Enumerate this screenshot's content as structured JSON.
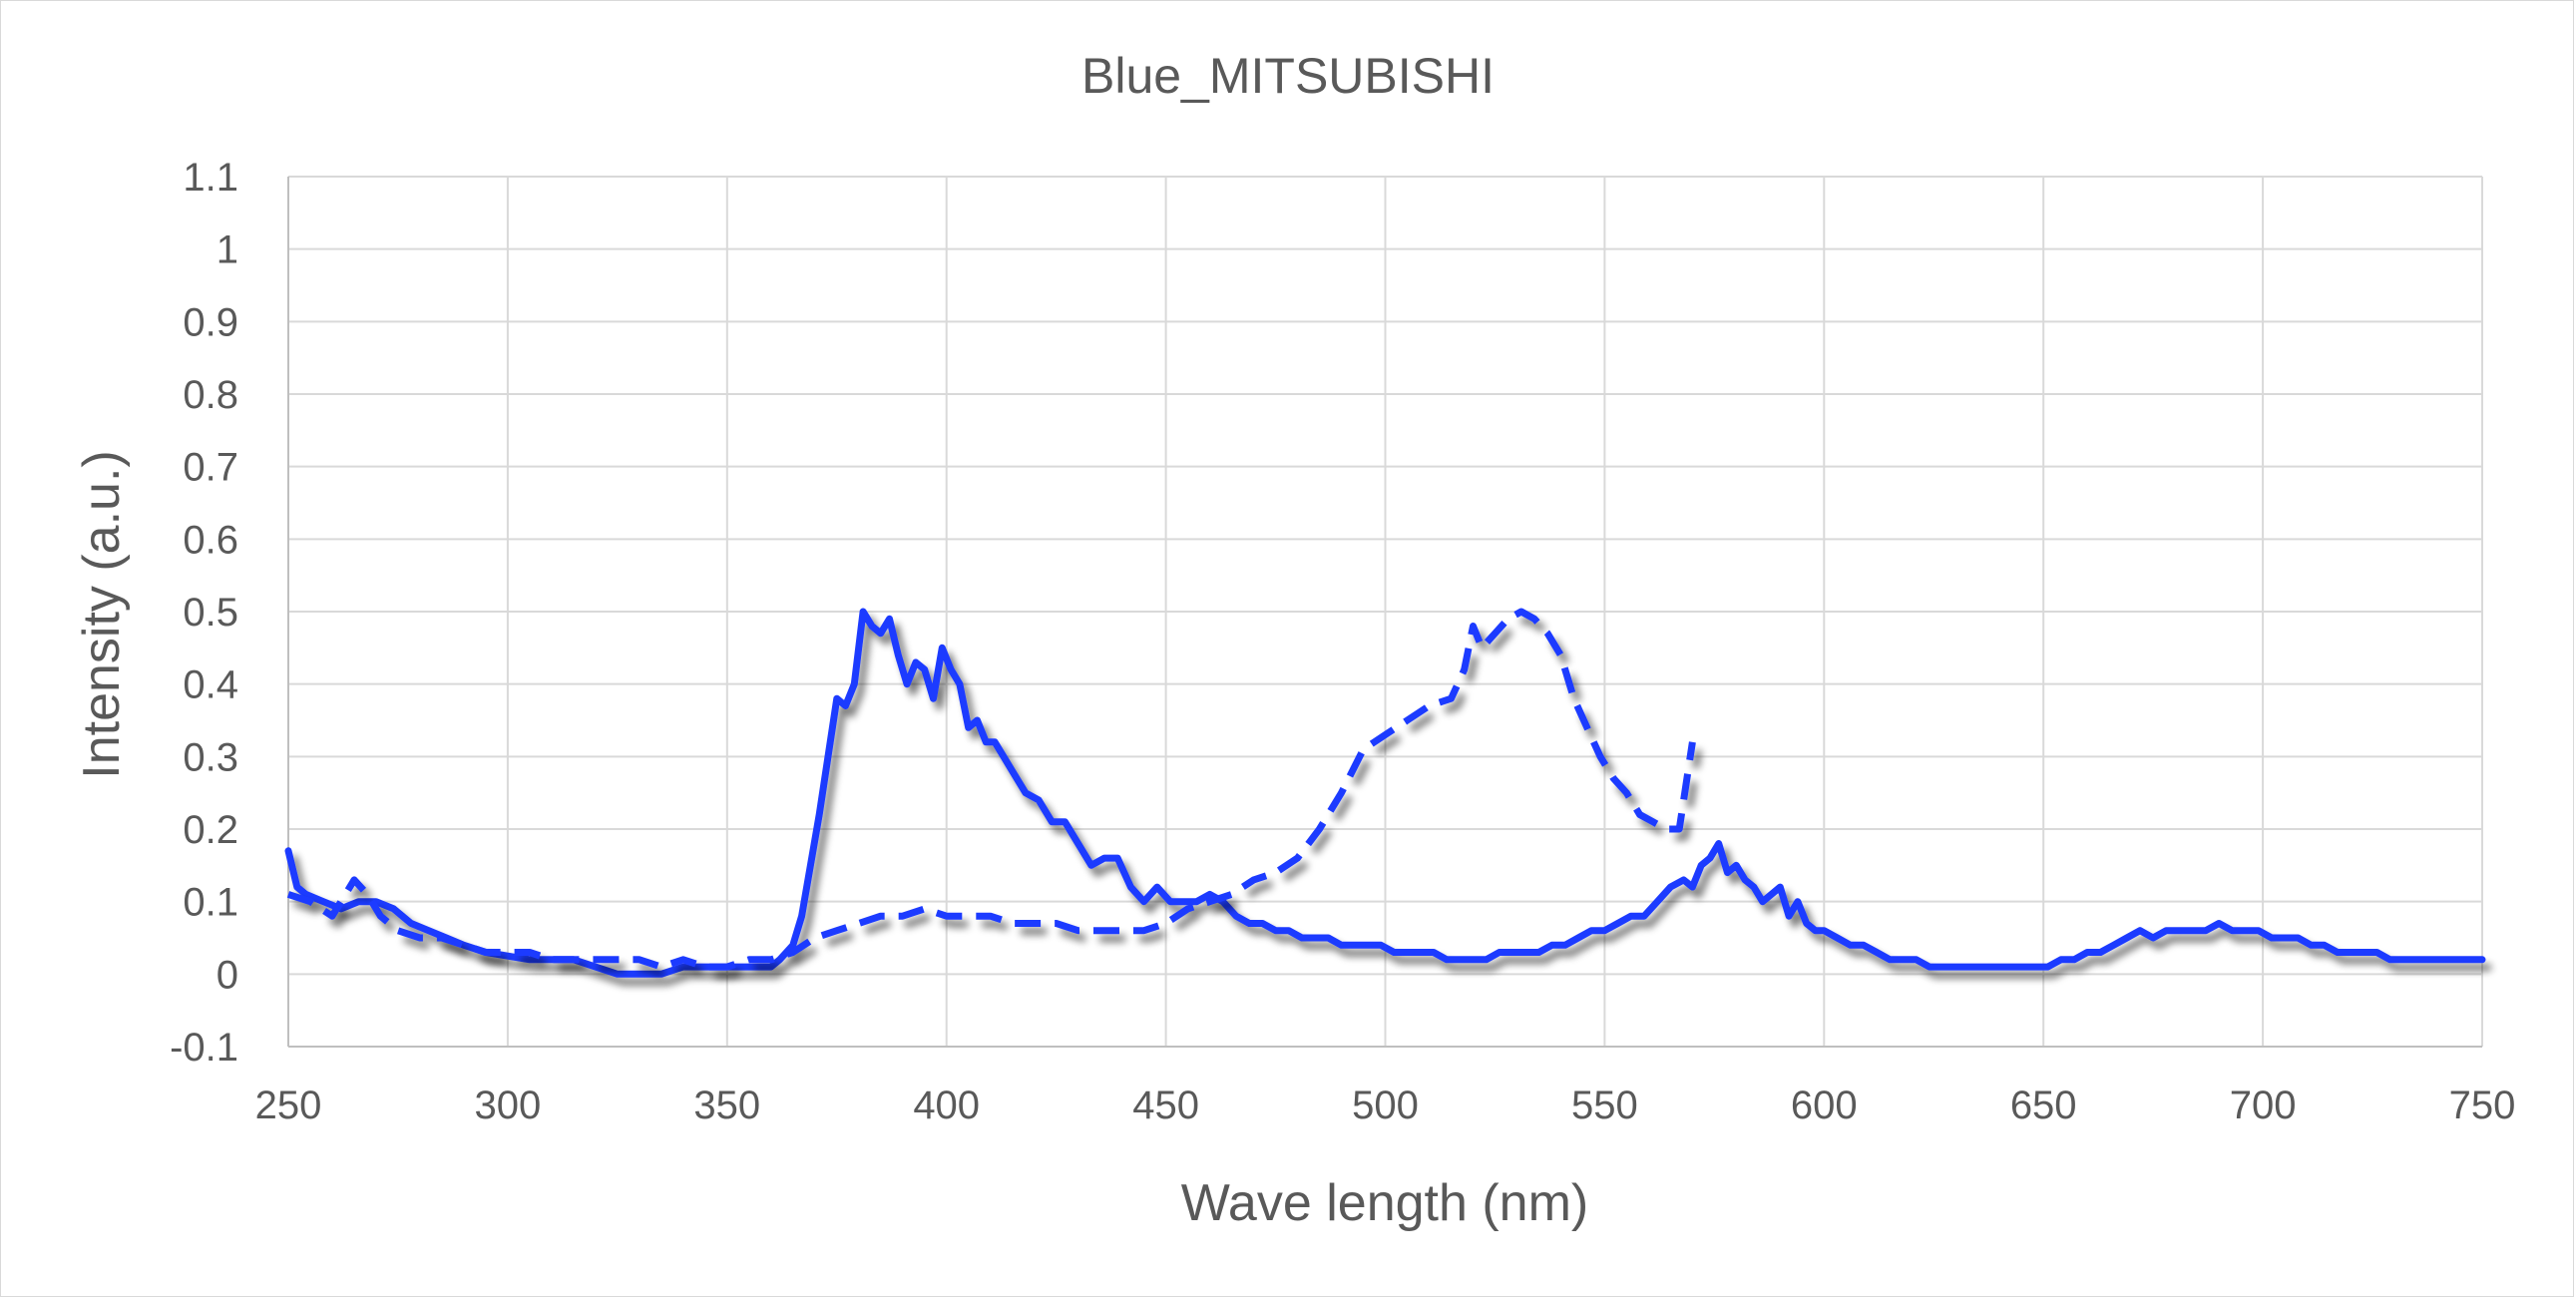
{
  "chart_data": {
    "type": "line",
    "title": "Blue_MITSUBISHI",
    "xlabel": "Wave length (nm)",
    "ylabel": "Intensity (a.u.)",
    "xlim": [
      250,
      750
    ],
    "ylim": [
      -0.1,
      1.1
    ],
    "xticks": [
      250,
      300,
      350,
      400,
      450,
      500,
      550,
      600,
      650,
      700,
      750
    ],
    "yticks": [
      -0.1,
      0,
      0.1,
      0.2,
      0.3,
      0.4,
      0.5,
      0.6,
      0.7,
      0.8,
      0.9,
      1,
      1.1
    ],
    "xtick_labels": [
      "250",
      "300",
      "350",
      "400",
      "450",
      "500",
      "550",
      "600",
      "650",
      "700",
      "750"
    ],
    "ytick_labels": [
      "-0.1",
      "0",
      "0.1",
      "0.2",
      "0.3",
      "0.4",
      "0.5",
      "0.6",
      "0.7",
      "0.8",
      "0.9",
      "1",
      "1.1"
    ],
    "grid": true,
    "legend": "none",
    "line_color": "#1f3bff",
    "series": [
      {
        "style": "solid",
        "x": [
          250,
          252,
          254,
          258,
          262,
          266,
          270,
          274,
          278,
          282,
          286,
          290,
          295,
          300,
          305,
          310,
          315,
          320,
          325,
          330,
          335,
          340,
          345,
          350,
          355,
          360,
          362,
          365,
          367,
          369,
          371,
          373,
          375,
          377,
          379,
          381,
          383,
          385,
          387,
          389,
          391,
          393,
          395,
          397,
          399,
          401,
          403,
          405,
          407,
          409,
          411,
          413,
          415,
          418,
          421,
          424,
          427,
          430,
          433,
          436,
          439,
          442,
          445,
          448,
          451,
          454,
          457,
          460,
          463,
          466,
          469,
          472,
          475,
          478,
          481,
          484,
          487,
          490,
          493,
          496,
          499,
          502,
          505,
          508,
          511,
          514,
          517,
          520,
          523,
          526,
          529,
          532,
          535,
          538,
          541,
          544,
          547,
          550,
          553,
          556,
          559,
          562,
          565,
          568,
          570,
          572,
          574,
          576,
          578,
          580,
          582,
          584,
          586,
          588,
          590,
          592,
          594,
          596,
          598,
          600,
          603,
          606,
          609,
          612,
          615,
          618,
          621,
          624,
          627,
          630,
          633,
          636,
          639,
          642,
          645,
          648,
          651,
          654,
          657,
          660,
          663,
          666,
          669,
          672,
          675,
          678,
          681,
          684,
          687,
          690,
          693,
          696,
          699,
          702,
          705,
          708,
          711,
          714,
          717,
          720,
          723,
          726,
          729,
          732,
          735,
          738,
          741,
          744,
          747,
          750
        ],
        "y": [
          0.17,
          0.12,
          0.11,
          0.1,
          0.09,
          0.1,
          0.1,
          0.09,
          0.07,
          0.06,
          0.05,
          0.04,
          0.03,
          0.025,
          0.02,
          0.02,
          0.02,
          0.01,
          0.0,
          0.0,
          0.0,
          0.01,
          0.01,
          0.01,
          0.01,
          0.01,
          0.02,
          0.04,
          0.08,
          0.15,
          0.22,
          0.3,
          0.38,
          0.37,
          0.4,
          0.5,
          0.48,
          0.47,
          0.49,
          0.44,
          0.4,
          0.43,
          0.42,
          0.38,
          0.45,
          0.42,
          0.4,
          0.34,
          0.35,
          0.32,
          0.32,
          0.3,
          0.28,
          0.25,
          0.24,
          0.21,
          0.21,
          0.18,
          0.15,
          0.16,
          0.16,
          0.12,
          0.1,
          0.12,
          0.1,
          0.1,
          0.1,
          0.11,
          0.1,
          0.08,
          0.07,
          0.07,
          0.06,
          0.06,
          0.05,
          0.05,
          0.05,
          0.04,
          0.04,
          0.04,
          0.04,
          0.03,
          0.03,
          0.03,
          0.03,
          0.02,
          0.02,
          0.02,
          0.02,
          0.03,
          0.03,
          0.03,
          0.03,
          0.04,
          0.04,
          0.05,
          0.06,
          0.06,
          0.07,
          0.08,
          0.08,
          0.1,
          0.12,
          0.13,
          0.12,
          0.15,
          0.16,
          0.18,
          0.14,
          0.15,
          0.13,
          0.12,
          0.1,
          0.11,
          0.12,
          0.08,
          0.1,
          0.07,
          0.06,
          0.06,
          0.05,
          0.04,
          0.04,
          0.03,
          0.02,
          0.02,
          0.02,
          0.01,
          0.01,
          0.01,
          0.01,
          0.01,
          0.01,
          0.01,
          0.01,
          0.01,
          0.01,
          0.02,
          0.02,
          0.03,
          0.03,
          0.04,
          0.05,
          0.06,
          0.05,
          0.06,
          0.06,
          0.06,
          0.06,
          0.07,
          0.06,
          0.06,
          0.06,
          0.05,
          0.05,
          0.05,
          0.04,
          0.04,
          0.03,
          0.03,
          0.03,
          0.03,
          0.02,
          0.02,
          0.02,
          0.02,
          0.02,
          0.02,
          0.02,
          0.02
        ]
      },
      {
        "style": "dashed",
        "x": [
          250,
          255,
          260,
          265,
          268,
          271,
          275,
          280,
          285,
          290,
          295,
          300,
          305,
          310,
          315,
          320,
          325,
          330,
          335,
          340,
          345,
          350,
          355,
          360,
          365,
          370,
          375,
          380,
          385,
          390,
          395,
          400,
          405,
          410,
          415,
          420,
          425,
          430,
          435,
          440,
          445,
          450,
          455,
          460,
          465,
          470,
          475,
          480,
          485,
          490,
          495,
          500,
          505,
          510,
          515,
          518,
          520,
          522,
          525,
          528,
          531,
          534,
          537,
          540,
          543,
          546,
          549,
          552,
          555,
          558,
          561,
          564,
          567,
          569,
          570
        ],
        "y": [
          0.11,
          0.1,
          0.08,
          0.13,
          0.11,
          0.08,
          0.06,
          0.05,
          0.05,
          0.04,
          0.03,
          0.03,
          0.03,
          0.02,
          0.02,
          0.02,
          0.02,
          0.02,
          0.01,
          0.02,
          0.01,
          0.01,
          0.02,
          0.02,
          0.03,
          0.05,
          0.06,
          0.07,
          0.08,
          0.08,
          0.09,
          0.08,
          0.08,
          0.08,
          0.07,
          0.07,
          0.07,
          0.06,
          0.06,
          0.06,
          0.06,
          0.07,
          0.09,
          0.1,
          0.11,
          0.13,
          0.14,
          0.16,
          0.2,
          0.25,
          0.31,
          0.33,
          0.35,
          0.37,
          0.38,
          0.42,
          0.48,
          0.45,
          0.47,
          0.49,
          0.5,
          0.49,
          0.47,
          0.44,
          0.38,
          0.34,
          0.3,
          0.27,
          0.25,
          0.22,
          0.21,
          0.2,
          0.2,
          0.28,
          0.32
        ]
      }
    ]
  }
}
